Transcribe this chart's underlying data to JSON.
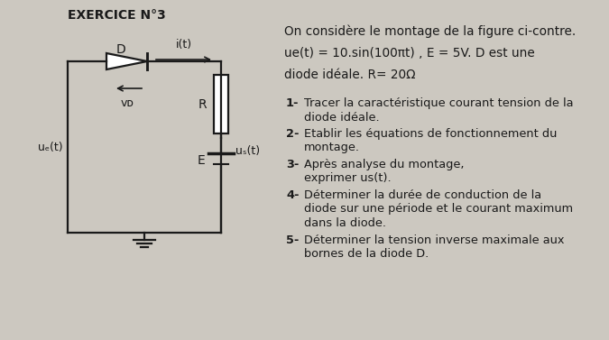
{
  "title": "EXERCICE N°3",
  "bg_color": "#ccc8c0",
  "text_color": "#1a1a1a",
  "circuit": {
    "label_D": "D",
    "label_i": "i(t)",
    "label_vD": "vᴅ",
    "label_R": "R",
    "label_E": "E",
    "label_ue": "uₑ(t)",
    "label_us": "uₛ(t)"
  },
  "right_text": {
    "line1": "On considère le montage de la figure ci-contre.",
    "line2": "ue(t) = 10.sin(100πt) , E = 5V. D est une",
    "line3": "diode idéale. R= 20Ω",
    "items": [
      [
        "1-",
        "Tracer la caractéristique courant tension de la",
        "diode idéale."
      ],
      [
        "2-",
        "Etablir les équations de fonctionnement du",
        "montage."
      ],
      [
        "3-",
        "Après analyse du montage,",
        "exprimer us(t)."
      ],
      [
        "4-",
        "Déterminer la durée de conduction de la",
        "diode sur une période et le courant maximum",
        "dans la diode."
      ],
      [
        "5-",
        "Déterminer la tension inverse maximale aux",
        "bornes de la diode D."
      ]
    ]
  }
}
